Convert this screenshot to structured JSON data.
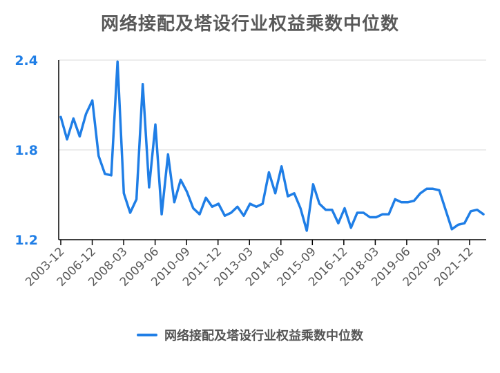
{
  "chart_data": {
    "type": "line",
    "title": "网络接配及塔设行业权益乘数中位数",
    "xlabel": "",
    "ylabel": "",
    "ylim": [
      1.2,
      2.4
    ],
    "yticks": [
      "1.2",
      "1.8",
      "2.4"
    ],
    "xticks": [
      "2003-12",
      "2006-12",
      "2008-03",
      "2009-06",
      "2010-09",
      "2011-12",
      "2013-03",
      "2014-06",
      "2015-09",
      "2016-12",
      "2018-03",
      "2019-06",
      "2020-09",
      "2021-12"
    ],
    "grid": true,
    "legend": "bottom",
    "series": [
      {
        "name": "网络接配及塔设行业权益乘数中位数",
        "color": "#1f7ee6",
        "values": [
          2.02,
          1.87,
          2.01,
          1.89,
          2.04,
          2.13,
          1.76,
          1.64,
          1.63,
          2.39,
          1.51,
          1.38,
          1.47,
          2.24,
          1.55,
          1.97,
          1.37,
          1.77,
          1.45,
          1.6,
          1.52,
          1.41,
          1.37,
          1.48,
          1.42,
          1.44,
          1.36,
          1.38,
          1.42,
          1.36,
          1.44,
          1.42,
          1.44,
          1.65,
          1.51,
          1.69,
          1.49,
          1.51,
          1.41,
          1.26,
          1.57,
          1.44,
          1.4,
          1.4,
          1.31,
          1.41,
          1.28,
          1.38,
          1.38,
          1.35,
          1.35,
          1.37,
          1.37,
          1.47,
          1.45,
          1.45,
          1.46,
          1.51,
          1.54,
          1.54,
          1.53,
          1.4,
          1.27,
          1.3,
          1.31,
          1.39,
          1.4,
          1.37
        ]
      }
    ]
  }
}
